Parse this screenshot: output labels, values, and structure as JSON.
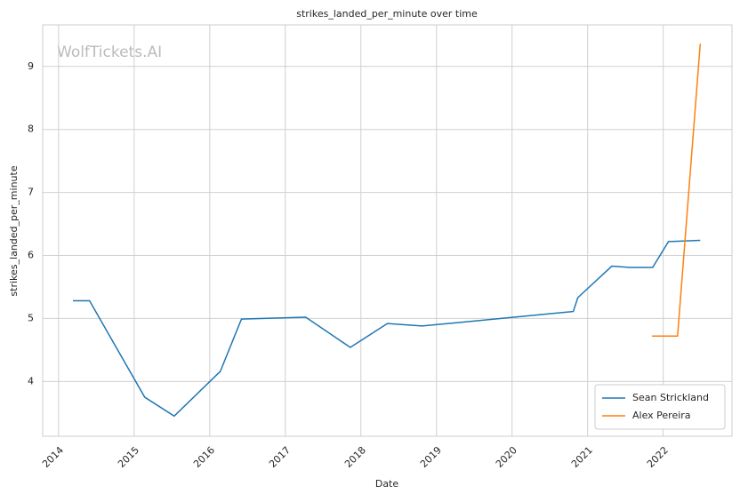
{
  "chart_data": {
    "type": "line",
    "title": "strikes_landed_per_minute over time",
    "xlabel": "Date",
    "ylabel": "strikes_landed_per_minute",
    "watermark": "WolfTickets.AI",
    "series": [
      {
        "name": "Sean Strickland",
        "color": "#1f77b4",
        "x": [
          2014.19,
          2014.41,
          2015.14,
          2015.53,
          2016.14,
          2016.42,
          2017.27,
          2017.86,
          2018.35,
          2018.81,
          2020.81,
          2020.87,
          2021.32,
          2021.56,
          2021.86,
          2022.07,
          2022.49
        ],
        "values": [
          5.28,
          5.28,
          3.75,
          3.45,
          4.16,
          4.99,
          5.02,
          4.54,
          4.92,
          4.88,
          5.11,
          5.33,
          5.83,
          5.81,
          5.81,
          6.22,
          6.24
        ]
      },
      {
        "name": "Alex Pereira",
        "color": "#ff7f0e",
        "x": [
          2021.85,
          2022.19,
          2022.49
        ],
        "values": [
          4.72,
          4.72,
          9.36
        ]
      }
    ],
    "xlim": [
      2013.79,
      2022.91
    ],
    "xticks": [
      2014,
      2015,
      2016,
      2017,
      2018,
      2019,
      2020,
      2021,
      2022
    ],
    "ylim": [
      3.13,
      9.66
    ],
    "yticks": [
      4,
      5,
      6,
      7,
      8,
      9
    ],
    "grid": true,
    "legend": "lower right"
  }
}
